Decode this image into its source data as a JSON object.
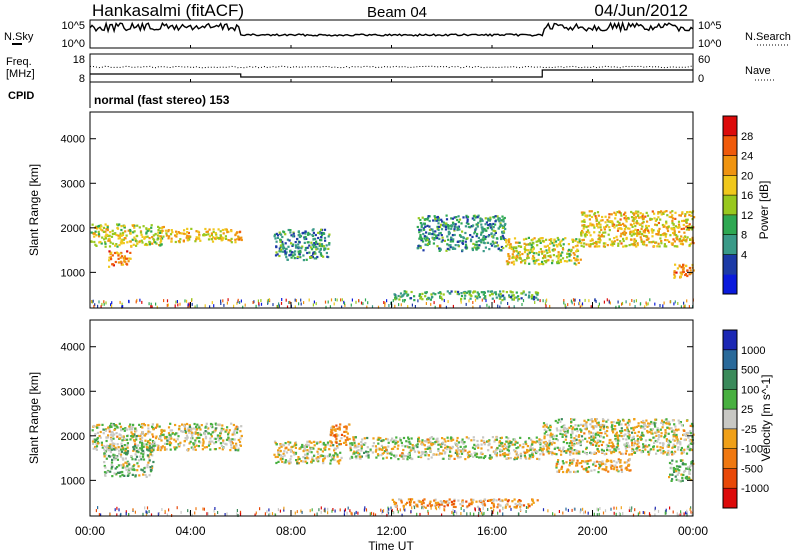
{
  "header": {
    "station": "Hankasalmi (fitACF)",
    "beam": "Beam 04",
    "date": "04/Jun/2012"
  },
  "top_panels": {
    "noise": {
      "left_label": "N.Sky",
      "right_label": "N.Search",
      "left_ticks": [
        "10^5",
        "10^0"
      ],
      "right_ticks": [
        "10^5",
        "10^0"
      ]
    },
    "freq": {
      "left_label_1": "Freq.",
      "left_label_2": "[MHz]",
      "right_label": "Nave",
      "left_ticks": [
        "18",
        "8"
      ],
      "right_ticks": [
        "60",
        "0"
      ]
    },
    "cpid": {
      "label": "CPID",
      "text": "normal (fast stereo) 153"
    }
  },
  "x_axis": {
    "label": "Time UT",
    "ticks": [
      "00:00",
      "04:00",
      "08:00",
      "12:00",
      "16:00",
      "20:00",
      "00:00"
    ]
  },
  "power_panel": {
    "ylabel": "Slant Range [km]",
    "yticks": [
      "4000",
      "3000",
      "2000",
      "1000"
    ],
    "colorbar_label": "Power [dB]",
    "colorbar_ticks": [
      "28",
      "24",
      "20",
      "16",
      "12",
      "8",
      "4"
    ],
    "colors": [
      "#0a1adc",
      "#1c3aa6",
      "#3a9a88",
      "#2ea852",
      "#98c81e",
      "#f0c81c",
      "#f09410",
      "#f05a0a",
      "#dc0a0a"
    ]
  },
  "velocity_panel": {
    "ylabel": "Slant Range [km]",
    "yticks": [
      "4000",
      "3000",
      "2000",
      "1000"
    ],
    "colorbar_label": "Velocity [m s^-1]",
    "colorbar_ticks": [
      "1000",
      "500",
      "100",
      "25",
      "-25",
      "-100",
      "-500",
      "-1000"
    ],
    "colors": [
      "#1c28b4",
      "#2a6a9a",
      "#3a8a5a",
      "#48b040",
      "#c8c8c4",
      "#f0a018",
      "#f07810",
      "#e84808",
      "#dc0a0a"
    ]
  },
  "chart_data": [
    {
      "type": "heatmap",
      "title": "Power",
      "x_range_hours": [
        0,
        24
      ],
      "y_range_km": [
        200,
        4600
      ],
      "cbar_range_db": [
        0,
        32
      ],
      "echo_bands": [
        {
          "t": [
            0.0,
            3.0
          ],
          "range_km": [
            1600,
            2100
          ],
          "power_db": 18
        },
        {
          "t": [
            3.0,
            6.0
          ],
          "range_km": [
            1700,
            2000
          ],
          "power_db": 20
        },
        {
          "t": [
            0.7,
            1.6
          ],
          "range_km": [
            1150,
            1500
          ],
          "power_db": 24
        },
        {
          "t": [
            7.3,
            9.5
          ],
          "range_km": [
            1300,
            2000
          ],
          "power_db": 10
        },
        {
          "t": [
            13.0,
            16.5
          ],
          "range_km": [
            1500,
            2300
          ],
          "power_db": 10
        },
        {
          "t": [
            16.5,
            19.5
          ],
          "range_km": [
            1200,
            1800
          ],
          "power_db": 18
        },
        {
          "t": [
            19.5,
            24.0
          ],
          "range_km": [
            1600,
            2400
          ],
          "power_db": 20
        },
        {
          "t": [
            23.2,
            24.0
          ],
          "range_km": [
            900,
            1200
          ],
          "power_db": 24
        },
        {
          "t": [
            12.0,
            17.8
          ],
          "range_km": [
            400,
            600
          ],
          "power_db": 12
        }
      ]
    },
    {
      "type": "heatmap",
      "title": "Velocity",
      "x_range_hours": [
        0,
        24
      ],
      "y_range_km": [
        200,
        4600
      ],
      "cbar_range_ms": [
        -1000,
        1000
      ],
      "echo_bands": [
        {
          "t": [
            0.0,
            6.0
          ],
          "range_km": [
            1700,
            2300
          ],
          "velocity_ms": 0
        },
        {
          "t": [
            0.5,
            2.5
          ],
          "range_km": [
            1100,
            1800
          ],
          "velocity_ms": 150
        },
        {
          "t": [
            7.3,
            10.0
          ],
          "range_km": [
            1400,
            1900
          ],
          "velocity_ms": 0
        },
        {
          "t": [
            9.5,
            10.3
          ],
          "range_km": [
            1800,
            2300
          ],
          "velocity_ms": -300
        },
        {
          "t": [
            10.3,
            18.0
          ],
          "range_km": [
            1500,
            2000
          ],
          "velocity_ms": 0
        },
        {
          "t": [
            18.0,
            24.0
          ],
          "range_km": [
            1600,
            2400
          ],
          "velocity_ms": 0
        },
        {
          "t": [
            18.5,
            21.5
          ],
          "range_km": [
            1200,
            1500
          ],
          "velocity_ms": -150
        },
        {
          "t": [
            23.0,
            24.0
          ],
          "range_km": [
            1000,
            1500
          ],
          "velocity_ms": 200
        },
        {
          "t": [
            12.0,
            17.8
          ],
          "range_km": [
            400,
            600
          ],
          "velocity_ms": -300
        }
      ]
    }
  ]
}
